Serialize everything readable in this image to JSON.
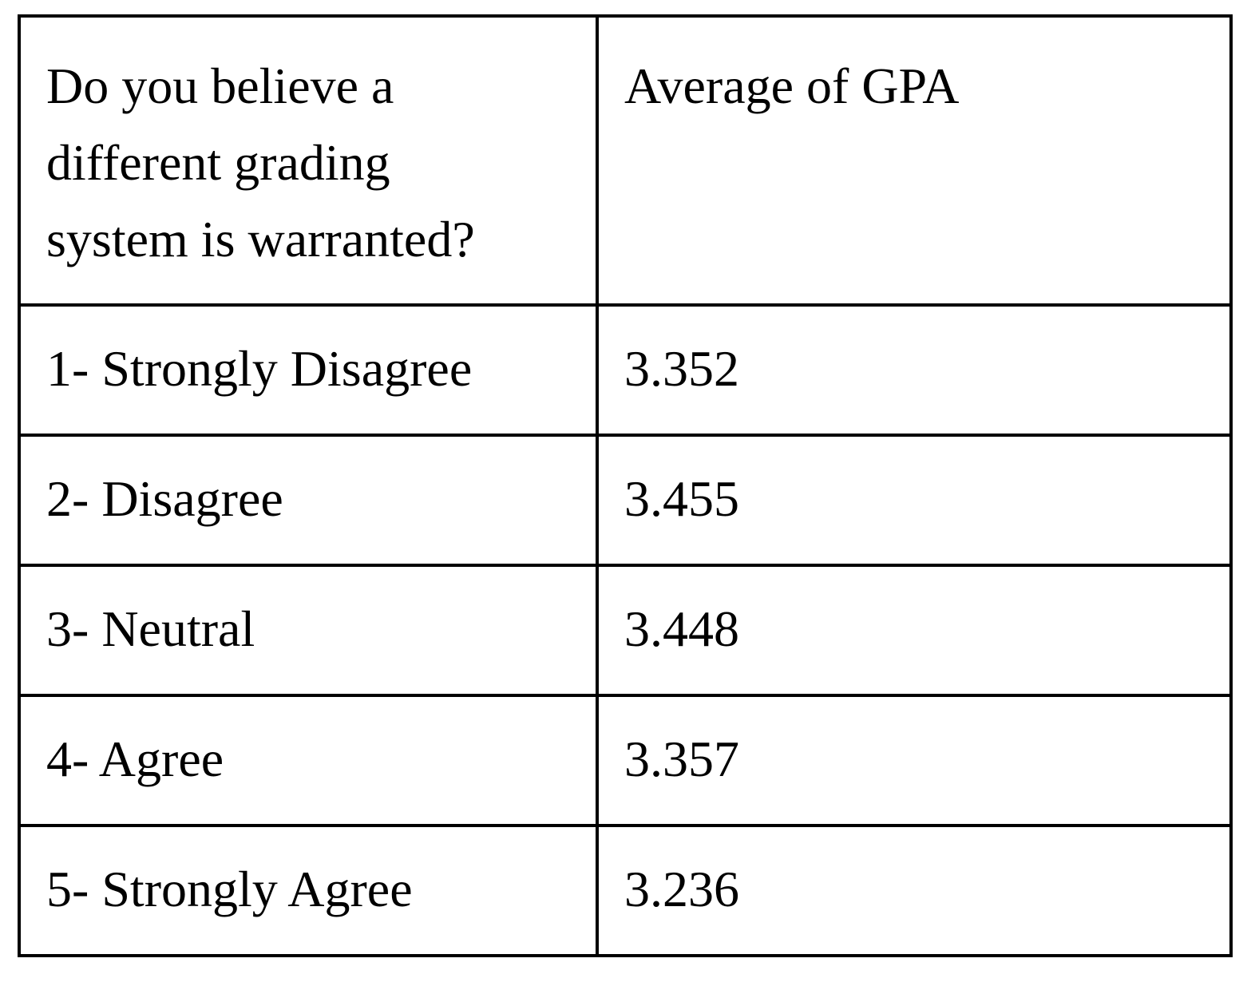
{
  "table": {
    "headers": {
      "question": "Do you believe a different grading system is warranted?",
      "average": "Average of GPA"
    },
    "rows": [
      {
        "response": "1- Strongly Disagree",
        "gpa": "3.352"
      },
      {
        "response": "2- Disagree",
        "gpa": "3.455"
      },
      {
        "response": "3- Neutral",
        "gpa": "3.448"
      },
      {
        "response": "4- Agree",
        "gpa": "3.357"
      },
      {
        "response": "5- Strongly Agree",
        "gpa": "3.236"
      }
    ]
  },
  "colors": {
    "border": "#000000",
    "text": "#000000",
    "background": "#ffffff"
  }
}
